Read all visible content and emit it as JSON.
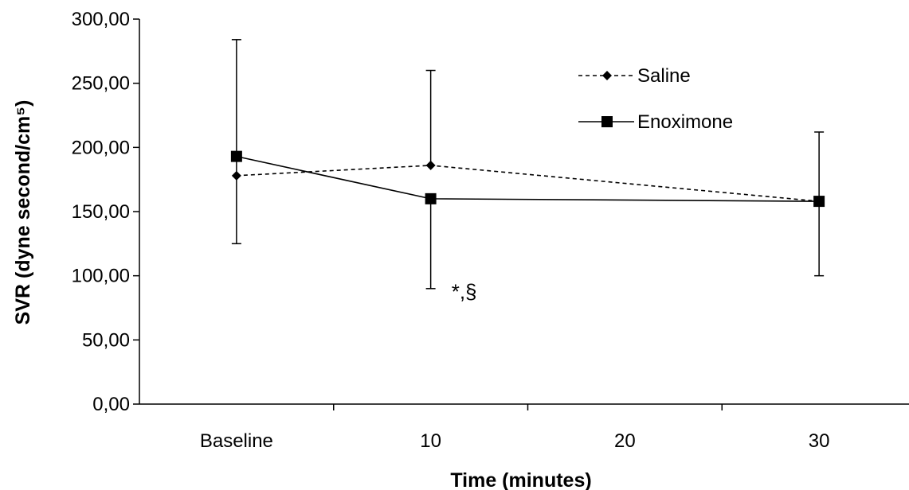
{
  "chart_data": {
    "type": "line",
    "categories": [
      "Baseline",
      "10",
      "20",
      "30"
    ],
    "xlabel": "Time (minutes)",
    "ylabel": "SVR (dyne second/cm⁵)",
    "ylim": [
      0,
      300
    ],
    "yticks": [
      "0,00",
      "50,00",
      "100,00",
      "150,00",
      "200,00",
      "250,00",
      "300,00"
    ],
    "legend_position": "top-right",
    "series": [
      {
        "name": "Saline",
        "style": "dashed",
        "marker": "diamond",
        "color": "#000000",
        "x": [
          "Baseline",
          "10",
          "30"
        ],
        "values": [
          178,
          186,
          158
        ],
        "error_low": [
          125,
          null,
          100
        ],
        "error_high": [
          284,
          260,
          212
        ]
      },
      {
        "name": "Enoximone",
        "style": "solid",
        "marker": "square",
        "color": "#000000",
        "x": [
          "Baseline",
          "10",
          "30"
        ],
        "values": [
          193,
          160,
          158
        ],
        "error_low": [
          null,
          90,
          null
        ],
        "error_high": [
          null,
          null,
          null
        ]
      }
    ],
    "annotations": [
      {
        "text": "*,§",
        "x": "10",
        "y": 82
      }
    ]
  }
}
